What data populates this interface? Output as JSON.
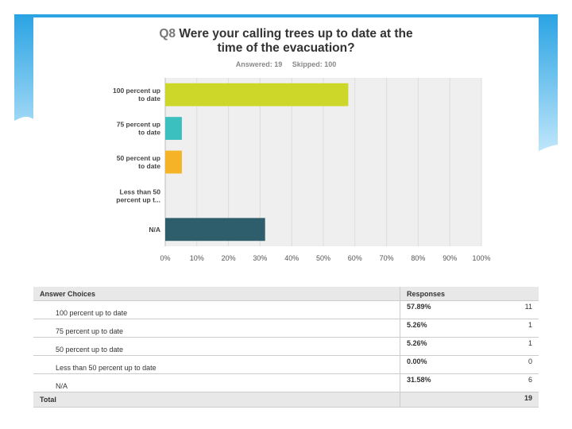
{
  "chart_data": {
    "type": "bar",
    "orientation": "horizontal",
    "title_prefix": "Q8",
    "title_line1": "Were your calling trees up to date at the",
    "title_line2": "time of the evacuation?",
    "answered_label": "Answered: 19",
    "skipped_label": "Skipped: 100",
    "categories": [
      [
        "100 percent up",
        "to date"
      ],
      [
        "75 percent up",
        "to date"
      ],
      [
        "50 percent up",
        "to date"
      ],
      [
        "Less than 50",
        "percent up t..."
      ],
      [
        "N/A"
      ]
    ],
    "values": [
      57.89,
      5.26,
      5.26,
      0.0,
      31.58
    ],
    "colors": [
      "#cdd729",
      "#3bbfbf",
      "#f5b327",
      "#8c9aa0",
      "#2e5e6b"
    ],
    "xlim": [
      0,
      100
    ],
    "ticks": [
      "0%",
      "10%",
      "20%",
      "30%",
      "40%",
      "50%",
      "60%",
      "70%",
      "80%",
      "90%",
      "100%"
    ]
  },
  "table": {
    "headers": [
      "Answer Choices",
      "Responses"
    ],
    "rows": [
      {
        "choice": "100 percent up to date",
        "pct": "57.89%",
        "count": "11"
      },
      {
        "choice": "75 percent up to date",
        "pct": "5.26%",
        "count": "1"
      },
      {
        "choice": "50 percent up to date",
        "pct": "5.26%",
        "count": "1"
      },
      {
        "choice": "Less than 50 percent up to date",
        "pct": "0.00%",
        "count": "0"
      },
      {
        "choice": "N/A",
        "pct": "31.58%",
        "count": "6"
      }
    ],
    "total_label": "Total",
    "total_count": "19"
  },
  "colors": {
    "slide_accent": "#3aa9e6",
    "slide_accent_light": "#9ad4f5"
  }
}
